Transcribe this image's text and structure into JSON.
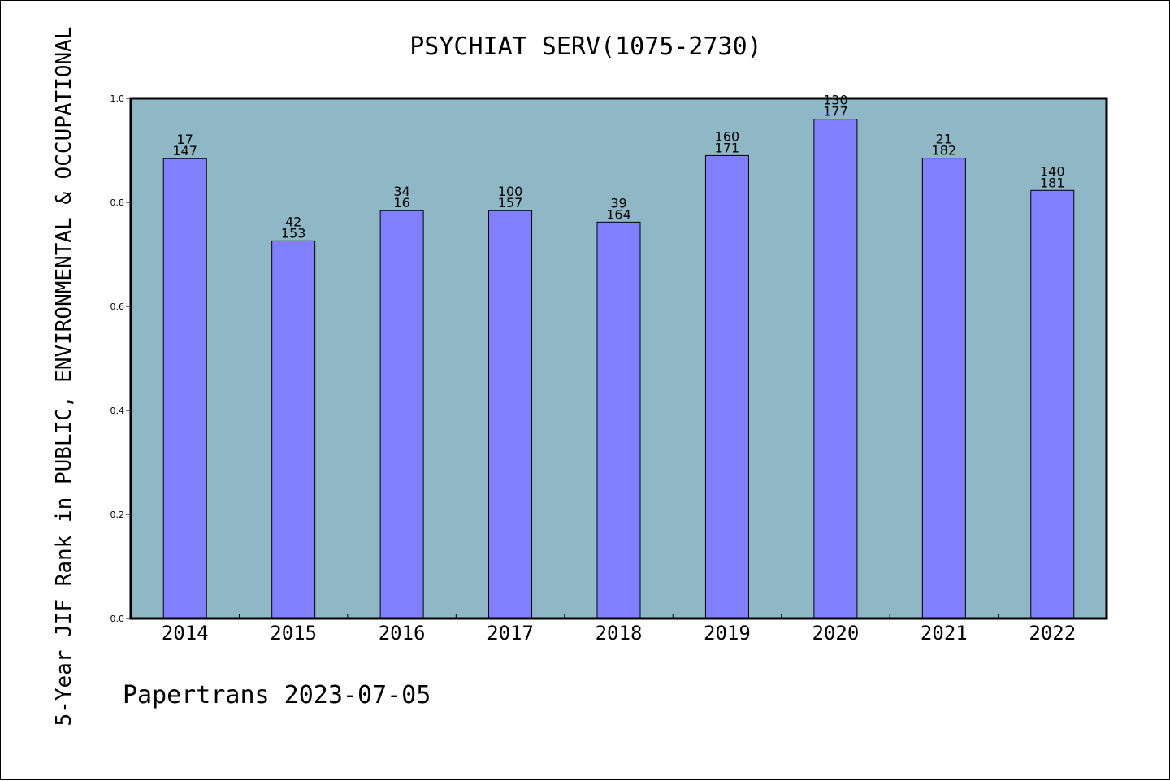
{
  "chart_data": {
    "type": "bar",
    "title": "PSYCHIAT SERV(1075-2730)",
    "xlabel": "",
    "ylabel": "5-Year JIF Rank in PUBLIC, ENVIRONMENTAL & OCCUPATIONAL",
    "ylim": [
      0,
      1.0
    ],
    "yticks": [
      "0.0",
      "0.2",
      "0.4",
      "0.6",
      "0.8",
      "1.0"
    ],
    "categories": [
      "2014",
      "2015",
      "2016",
      "2017",
      "2018",
      "2019",
      "2020",
      "2021",
      "2022"
    ],
    "values": [
      0.884,
      0.726,
      0.784,
      0.784,
      0.762,
      0.89,
      0.96,
      0.885,
      0.823
    ],
    "labels_top": [
      "17",
      "42",
      "34",
      "100",
      "39",
      "160",
      "130",
      "21",
      "140"
    ],
    "labels_bottom": [
      "147",
      "153",
      "16",
      "157",
      "164",
      "171",
      "177",
      "182",
      "181"
    ],
    "grid": false,
    "colors": {
      "plot_background": "#8fb7c6",
      "bar_fill": "#8080ff",
      "bar_edge": "#000000"
    }
  },
  "footer": {
    "watermark": "Papertrans 2023-07-05"
  }
}
